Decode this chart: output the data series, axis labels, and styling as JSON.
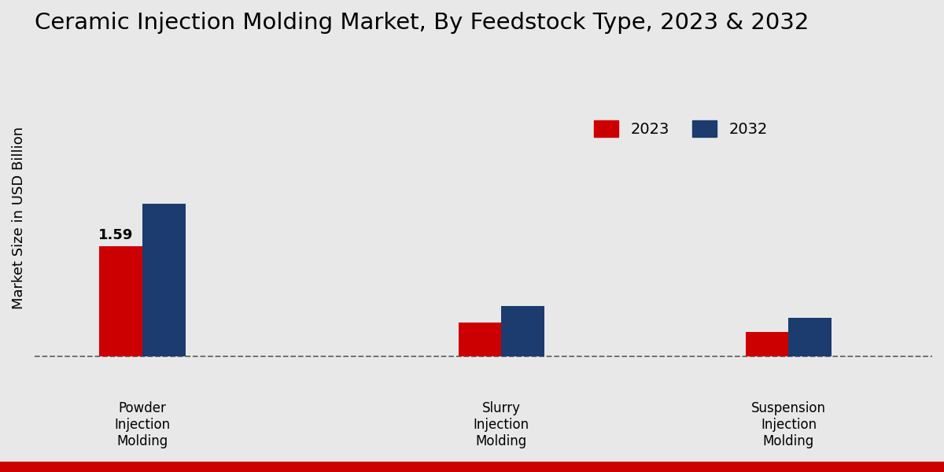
{
  "title": "Ceramic Injection Molding Market, By Feedstock Type, 2023 & 2032",
  "ylabel": "Market Size in USD Billion",
  "categories": [
    "Powder\nInjection\nMolding",
    "Slurry\nInjection\nMolding",
    "Suspension\nInjection\nMolding"
  ],
  "values_2023": [
    1.59,
    0.48,
    0.35
  ],
  "values_2032": [
    2.2,
    0.72,
    0.55
  ],
  "color_2023": "#cc0000",
  "color_2032": "#1c3b6e",
  "bar_label_2023": "1.59",
  "background_color": "#e8e8e8",
  "legend_labels": [
    "2023",
    "2032"
  ],
  "title_fontsize": 21,
  "axis_label_fontsize": 13,
  "tick_fontsize": 12,
  "legend_fontsize": 14,
  "bar_width": 0.18,
  "bottom_strip_color": "#cc0000",
  "ylim_max": 4.5
}
